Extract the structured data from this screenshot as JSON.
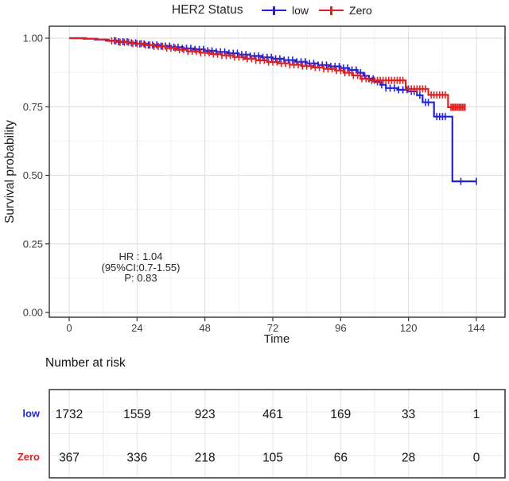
{
  "header": {
    "title": "HER2 Status",
    "legend": [
      {
        "label": "low",
        "color": "#2222DD"
      },
      {
        "label": "Zero",
        "color": "#DF2020"
      }
    ]
  },
  "chart_data": {
    "type": "line",
    "subtype": "kaplan-meier-step-curve",
    "title": "HER2 Status",
    "xlabel": "Time",
    "ylabel": "Survival probability",
    "x_ticks": [
      0,
      24,
      48,
      72,
      96,
      120,
      144
    ],
    "y_ticks": [
      {
        "value": 0.0,
        "label": "0.00"
      },
      {
        "value": 0.25,
        "label": "0.25"
      },
      {
        "value": 0.5,
        "label": "0.50"
      },
      {
        "value": 0.75,
        "label": "0.75"
      },
      {
        "value": 1.0,
        "label": "1.00"
      }
    ],
    "xlim": [
      -7,
      156
    ],
    "ylim": [
      -0.02,
      1.04
    ],
    "grid": {
      "major": true,
      "minor": true
    },
    "annotation": {
      "lines": [
        "HR : 1.04",
        "(95%CI:0.7-1.55)",
        "P: 0.83"
      ]
    },
    "series": [
      {
        "name": "low",
        "color": "#2222DD",
        "start": [
          0,
          1.0
        ],
        "steps": [
          [
            5,
            0.998
          ],
          [
            9,
            0.995
          ],
          [
            13,
            0.991
          ],
          [
            17,
            0.987
          ],
          [
            21,
            0.983
          ],
          [
            24,
            0.979
          ],
          [
            28,
            0.975
          ],
          [
            32,
            0.971
          ],
          [
            36,
            0.967
          ],
          [
            40,
            0.963
          ],
          [
            44,
            0.959
          ],
          [
            48,
            0.954
          ],
          [
            52,
            0.95
          ],
          [
            56,
            0.945
          ],
          [
            60,
            0.94
          ],
          [
            64,
            0.935
          ],
          [
            68,
            0.93
          ],
          [
            72,
            0.925
          ],
          [
            76,
            0.92
          ],
          [
            80,
            0.914
          ],
          [
            84,
            0.908
          ],
          [
            88,
            0.902
          ],
          [
            92,
            0.897
          ],
          [
            96,
            0.891
          ],
          [
            99,
            0.884
          ],
          [
            102,
            0.874
          ],
          [
            104,
            0.863
          ],
          [
            106,
            0.852
          ],
          [
            108,
            0.841
          ],
          [
            110,
            0.83
          ],
          [
            112,
            0.818
          ],
          [
            116,
            0.812
          ],
          [
            120,
            0.806
          ],
          [
            123,
            0.792
          ],
          [
            125,
            0.766
          ],
          [
            129,
            0.714
          ],
          [
            135.5,
            0.478
          ]
        ],
        "end_time": 144,
        "censor_times": [
          16,
          17.5,
          19,
          20.5,
          22,
          23.5,
          25,
          26.5,
          28,
          29.5,
          31,
          32.5,
          34,
          35.5,
          37,
          38.5,
          40,
          41.5,
          43,
          44.5,
          46,
          47.5,
          49,
          50.5,
          52,
          53.5,
          55,
          56.5,
          58,
          59.5,
          61,
          62.5,
          64,
          65.5,
          67,
          68.5,
          70,
          71.5,
          73,
          74.5,
          76,
          77.5,
          79,
          80.5,
          82,
          83.5,
          85,
          86.5,
          88,
          89.5,
          91,
          92.5,
          94,
          95.5,
          97,
          98.5,
          100,
          101.5,
          103,
          104.5,
          106,
          107.5,
          109,
          110.5,
          112,
          113.5,
          115,
          116.5,
          118,
          119.5,
          121,
          122,
          124,
          126,
          127,
          130,
          131,
          132,
          133,
          138.5,
          144
        ]
      },
      {
        "name": "Zero",
        "color": "#DF2020",
        "start": [
          0,
          1.0
        ],
        "steps": [
          [
            6,
            0.998
          ],
          [
            10,
            0.995
          ],
          [
            14,
            0.99
          ],
          [
            18,
            0.985
          ],
          [
            22,
            0.98
          ],
          [
            26,
            0.975
          ],
          [
            30,
            0.97
          ],
          [
            34,
            0.964
          ],
          [
            38,
            0.958
          ],
          [
            42,
            0.952
          ],
          [
            46,
            0.947
          ],
          [
            50,
            0.942
          ],
          [
            54,
            0.937
          ],
          [
            58,
            0.931
          ],
          [
            62,
            0.925
          ],
          [
            66,
            0.919
          ],
          [
            70,
            0.913
          ],
          [
            74,
            0.908
          ],
          [
            78,
            0.903
          ],
          [
            82,
            0.898
          ],
          [
            86,
            0.893
          ],
          [
            90,
            0.888
          ],
          [
            94,
            0.882
          ],
          [
            97,
            0.874
          ],
          [
            100,
            0.864
          ],
          [
            103,
            0.852
          ],
          [
            106,
            0.846
          ],
          [
            119,
            0.815
          ],
          [
            127,
            0.793
          ],
          [
            134,
            0.748
          ]
        ],
        "end_time": 140,
        "censor_times": [
          15,
          16.5,
          18,
          19.5,
          21,
          22.5,
          24,
          25.5,
          27,
          28.5,
          30,
          31.5,
          33,
          34.5,
          36,
          37.5,
          39,
          40.5,
          42,
          43.5,
          45,
          46.5,
          48,
          49.5,
          51,
          52.5,
          54,
          55.5,
          57,
          58.5,
          60,
          61.5,
          63,
          64.5,
          66,
          67.5,
          69,
          70.5,
          72,
          73.5,
          75,
          76.5,
          78,
          79.5,
          81,
          82.5,
          84,
          85.5,
          87,
          88.5,
          90,
          91.5,
          93,
          94.5,
          96,
          97.5,
          99,
          100.5,
          102,
          103.5,
          105,
          107,
          108,
          109,
          110,
          111,
          112,
          113,
          114,
          115,
          116,
          117,
          118,
          120,
          121,
          122,
          123,
          124,
          125,
          126,
          128,
          129,
          130,
          131,
          132,
          133,
          135,
          135.5,
          136,
          136.5,
          137,
          137.5,
          138,
          138.5,
          139,
          139.5,
          140
        ]
      }
    ]
  },
  "risk_table": {
    "title": "Number at risk",
    "times": [
      0,
      24,
      48,
      72,
      96,
      120,
      144
    ],
    "rows": [
      {
        "label": "low",
        "color": "#2222DD",
        "values": [
          1732,
          1559,
          923,
          461,
          169,
          33,
          1
        ]
      },
      {
        "label": "Zero",
        "color": "#DF2020",
        "values": [
          367,
          336,
          218,
          105,
          66,
          28,
          0
        ]
      }
    ]
  }
}
